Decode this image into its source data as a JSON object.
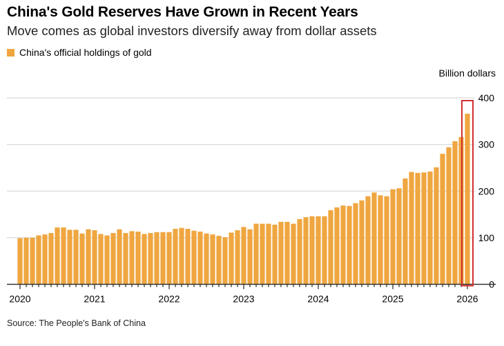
{
  "title": "China's Gold Reserves Have Grown in Recent Years",
  "subtitle": "Move comes as global investors diversify away from dollar assets",
  "source": "Source: The People's Bank of China",
  "colors": {
    "bar": "#EFA640",
    "highlight": "#D32F2F",
    "grid": "#D9D9D9"
  },
  "chart_data": {
    "type": "bar",
    "legend": [
      {
        "name": "China's official holdings of gold",
        "position": "top-left"
      }
    ],
    "ylabel": "Billion dollars",
    "ylim": [
      0,
      400
    ],
    "yticks": [
      0,
      100,
      200,
      300,
      400
    ],
    "yaxis_position": "right",
    "grid": true,
    "xtick_labels": [
      "2020",
      "2021",
      "2022",
      "2023",
      "2024",
      "2025",
      "2026"
    ],
    "x_start": "2020-01",
    "x_end": "2026-01",
    "frequency": "monthly",
    "highlighted": "2026-01",
    "values": [
      99,
      100,
      100,
      105,
      107,
      110,
      122,
      122,
      117,
      117,
      109,
      118,
      116,
      108,
      105,
      110,
      118,
      110,
      114,
      113,
      108,
      110,
      112,
      112,
      112,
      119,
      121,
      119,
      115,
      113,
      109,
      107,
      104,
      101,
      111,
      116,
      123,
      118,
      130,
      130,
      130,
      128,
      134,
      134,
      130,
      140,
      144,
      146,
      146,
      146,
      159,
      165,
      169,
      168,
      174,
      180,
      189,
      197,
      191,
      189,
      204,
      206,
      227,
      241,
      239,
      240,
      242,
      251,
      280,
      294,
      307,
      316,
      366
    ]
  }
}
